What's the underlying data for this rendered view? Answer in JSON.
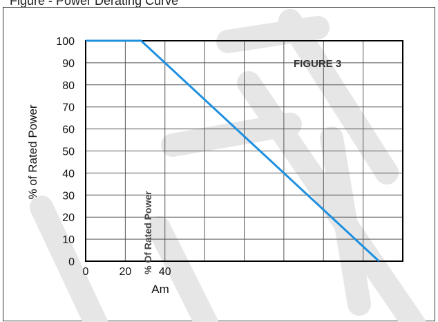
{
  "header": {
    "title": "Figure - Power Derating Curve"
  },
  "chart_data": {
    "type": "line",
    "ylabel": "% of Rated Power",
    "xlabel": "Am",
    "annotation_figure": "FIGURE 3",
    "annotation_vertical": "% Of Rated Power",
    "x_ticks": [
      "0",
      "20",
      "40"
    ],
    "y_ticks": [
      0,
      10,
      20,
      30,
      40,
      50,
      60,
      70,
      80,
      90,
      100
    ],
    "xlim": [
      0,
      160
    ],
    "ylim": [
      0,
      100
    ],
    "x_grid": [
      0,
      20,
      40,
      60,
      80,
      100,
      120,
      140,
      160
    ],
    "grid": true,
    "series": [
      {
        "x": [
          0,
          28,
          148
        ],
        "values": [
          100,
          100,
          0
        ],
        "color": "#1e90e0"
      }
    ]
  },
  "watermark": {
    "color": "#e6e6e6"
  }
}
